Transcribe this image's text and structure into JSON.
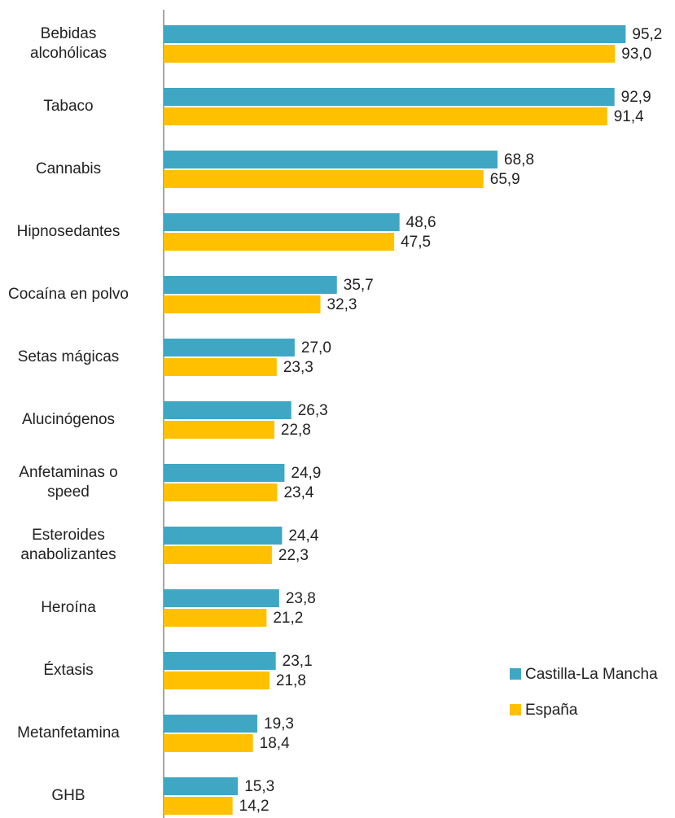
{
  "chart_data": {
    "type": "hbar",
    "categories": [
      "Bebidas\nalcohólicas",
      "Tabaco",
      "Cannabis",
      "Hipnosedantes",
      "Cocaína en polvo",
      "Setas mágicas",
      "Alucinógenos",
      "Anfetaminas o\nspeed",
      "Esteroides\nanabolizantes",
      "Heroína",
      "Éxtasis",
      "Metanfetamina",
      "GHB"
    ],
    "series": [
      {
        "name": "Castilla-La Mancha",
        "color": "#3fa7c4",
        "values": [
          95.2,
          92.9,
          68.8,
          48.6,
          35.7,
          27.0,
          26.3,
          24.9,
          24.4,
          23.8,
          23.1,
          19.3,
          15.3
        ],
        "value_labels": [
          "95,2",
          "92,9",
          "68,8",
          "48,6",
          "35,7",
          "27,0",
          "26,3",
          "24,9",
          "24,4",
          "23,8",
          "23,1",
          "19,3",
          "15,3"
        ]
      },
      {
        "name": "España",
        "color": "#ffc000",
        "values": [
          93.0,
          91.4,
          65.9,
          47.5,
          32.3,
          23.3,
          22.8,
          23.4,
          22.3,
          21.2,
          21.8,
          18.4,
          14.2
        ],
        "value_labels": [
          "93,0",
          "91,4",
          "65,9",
          "47,5",
          "32,3",
          "23,3",
          "22,8",
          "23,4",
          "22,3",
          "21,2",
          "21,8",
          "18,4",
          "14,2"
        ]
      }
    ],
    "xlim": [
      0,
      100
    ],
    "legend": "lower right"
  }
}
